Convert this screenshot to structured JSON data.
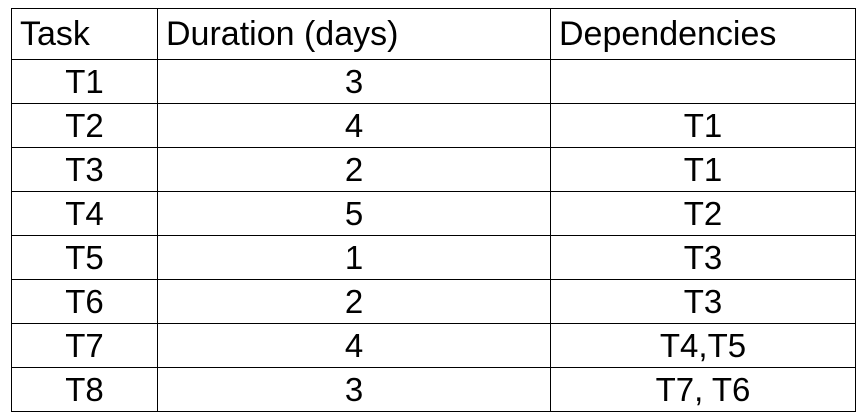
{
  "table": {
    "headers": [
      "Task",
      "Duration (days)",
      "Dependencies"
    ],
    "rows": [
      {
        "task": "T1",
        "duration": "3",
        "dependencies": ""
      },
      {
        "task": "T2",
        "duration": "4",
        "dependencies": "T1"
      },
      {
        "task": "T3",
        "duration": "2",
        "dependencies": "T1"
      },
      {
        "task": "T4",
        "duration": "5",
        "dependencies": "T2"
      },
      {
        "task": "T5",
        "duration": "1",
        "dependencies": "T3"
      },
      {
        "task": "T6",
        "duration": "2",
        "dependencies": "T3"
      },
      {
        "task": "T7",
        "duration": "4",
        "dependencies": "T4,T5"
      },
      {
        "task": "T8",
        "duration": "3",
        "dependencies": "T7, T6"
      }
    ]
  }
}
